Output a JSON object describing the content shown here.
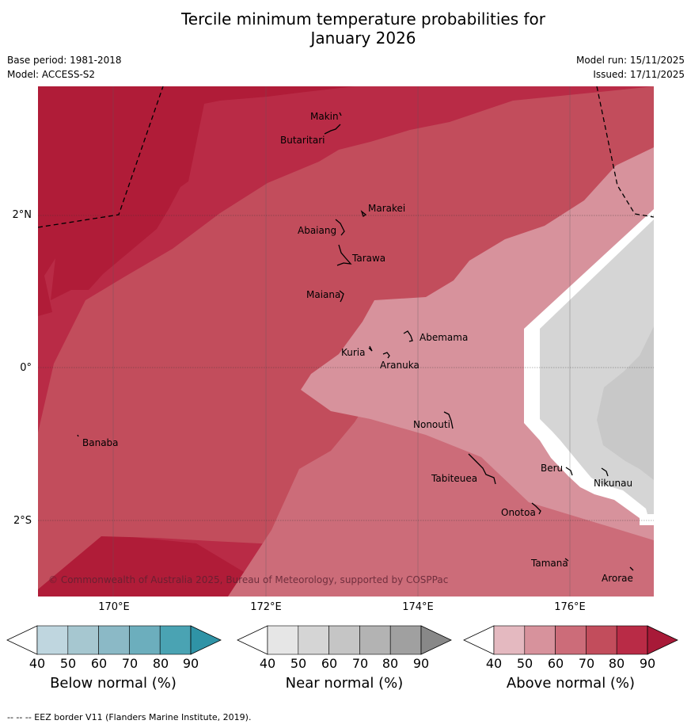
{
  "title": {
    "line1": "Tercile minimum temperature probabilities for",
    "line2": "January 2026"
  },
  "meta": {
    "base_period": "Base period: 1981-2018",
    "model": "Model: ACCESS-S2",
    "model_run": "Model run: 15/11/2025",
    "issued": "Issued: 17/11/2025"
  },
  "map": {
    "copyright": "© Commonwealth of Australia 2025, Bureau of Meteorology, supported by COSPPac",
    "longitude_labels": [
      "170°E",
      "172°E",
      "174°E",
      "176°E"
    ],
    "latitude_labels": [
      "2°N",
      "0°",
      "2°S"
    ],
    "islands": [
      "Makin",
      "Butaritari",
      "Marakei",
      "Abaiang",
      "Tarawa",
      "Maiana",
      "Abemama",
      "Kuria",
      "Aranuka",
      "Banaba",
      "Nonouti",
      "Tabiteuea",
      "Beru",
      "Nikunau",
      "Onotoa",
      "Tamana",
      "Arorae"
    ]
  },
  "colorbars": [
    {
      "name": "Below normal (%)",
      "ticks": [
        "40",
        "50",
        "60",
        "70",
        "80",
        "90"
      ],
      "colors": [
        "#bfd6df",
        "#a6c7d0",
        "#8bb9c6",
        "#6caebd",
        "#4aa3b3",
        "#2f93a6"
      ]
    },
    {
      "name": "Near normal (%)",
      "ticks": [
        "40",
        "50",
        "60",
        "70",
        "80",
        "90"
      ],
      "colors": [
        "#e6e6e6",
        "#d5d5d5",
        "#c5c5c5",
        "#b3b3b3",
        "#a0a0a0",
        "#888888"
      ]
    },
    {
      "name": "Above normal (%)",
      "ticks": [
        "40",
        "50",
        "60",
        "70",
        "80",
        "90"
      ],
      "colors": [
        "#e4b9c0",
        "#d7929c",
        "#cc6c79",
        "#c24d5c",
        "#b92b46",
        "#a81a38"
      ]
    }
  ],
  "footer": "--  --  -- EEZ border V11 (Flanders Marine Institute, 2019)."
}
